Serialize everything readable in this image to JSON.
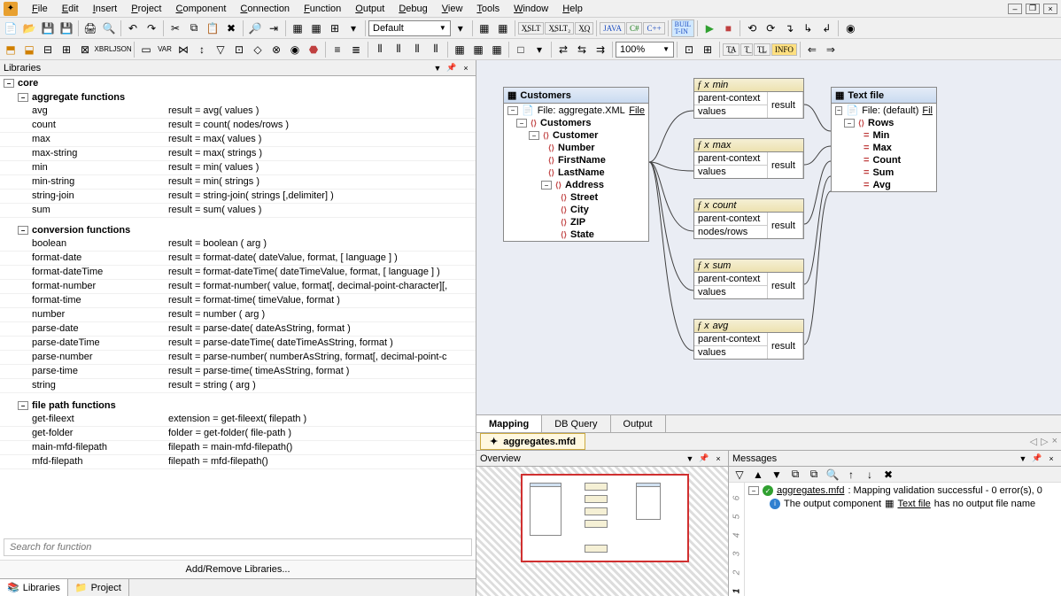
{
  "menubar": [
    "File",
    "Edit",
    "Insert",
    "Project",
    "Component",
    "Connection",
    "Function",
    "Output",
    "Debug",
    "View",
    "Tools",
    "Window",
    "Help"
  ],
  "toolbar2": {
    "combo": "Default",
    "zoom": "100%"
  },
  "libraries": {
    "title": "Libraries",
    "root": "core",
    "groups": [
      {
        "name": "aggregate functions",
        "fns": [
          {
            "n": "avg",
            "s": "result = avg( values )"
          },
          {
            "n": "count",
            "s": "result = count( nodes/rows )"
          },
          {
            "n": "max",
            "s": "result = max( values )"
          },
          {
            "n": "max-string",
            "s": "result = max( strings )"
          },
          {
            "n": "min",
            "s": "result = min( values )"
          },
          {
            "n": "min-string",
            "s": "result = min( strings )"
          },
          {
            "n": "string-join",
            "s": "result = string-join( strings [,delimiter] )"
          },
          {
            "n": "sum",
            "s": "result = sum( values )"
          }
        ]
      },
      {
        "name": "conversion functions",
        "fns": [
          {
            "n": "boolean",
            "s": "result = boolean ( arg )"
          },
          {
            "n": "format-date",
            "s": "result = format-date( dateValue, format, [ language ] )"
          },
          {
            "n": "format-dateTime",
            "s": "result = format-dateTime( dateTimeValue, format, [ language ] )"
          },
          {
            "n": "format-number",
            "s": "result = format-number( value, format[, decimal-point-character][,"
          },
          {
            "n": "format-time",
            "s": "result = format-time( timeValue, format )"
          },
          {
            "n": "number",
            "s": "result = number ( arg )"
          },
          {
            "n": "parse-date",
            "s": "result = parse-date( dateAsString, format )"
          },
          {
            "n": "parse-dateTime",
            "s": "result = parse-dateTime( dateTimeAsString, format )"
          },
          {
            "n": "parse-number",
            "s": "result = parse-number( numberAsString, format[, decimal-point-c"
          },
          {
            "n": "parse-time",
            "s": "result = parse-time( timeAsString, format )"
          },
          {
            "n": "string",
            "s": "result = string ( arg )"
          }
        ]
      },
      {
        "name": "file path functions",
        "fns": [
          {
            "n": "get-fileext",
            "s": "extension = get-fileext( filepath )"
          },
          {
            "n": "get-folder",
            "s": "folder = get-folder( file-path )"
          },
          {
            "n": "main-mfd-filepath",
            "s": "filepath = main-mfd-filepath()"
          },
          {
            "n": "mfd-filepath",
            "s": "filepath = mfd-filepath()"
          }
        ]
      }
    ],
    "search_placeholder": "Search for function",
    "add_btn": "Add/Remove Libraries...",
    "tabs": [
      "Libraries",
      "Project"
    ]
  },
  "canvas": {
    "customers": {
      "title": "Customers",
      "file": "File: aggregate.XML",
      "filelink": "File",
      "tree": [
        "Customers",
        "Customer",
        "Number",
        "FirstName",
        "LastName",
        "Address",
        "Street",
        "City",
        "ZIP",
        "State"
      ]
    },
    "funcs": [
      {
        "name": "min",
        "rows": [
          "parent-context",
          "values"
        ],
        "out": "result"
      },
      {
        "name": "max",
        "rows": [
          "parent-context",
          "values"
        ],
        "out": "result"
      },
      {
        "name": "count",
        "rows": [
          "parent-context",
          "nodes/rows"
        ],
        "out": "result"
      },
      {
        "name": "sum",
        "rows": [
          "parent-context",
          "values"
        ],
        "out": "result"
      },
      {
        "name": "avg",
        "rows": [
          "parent-context",
          "values"
        ],
        "out": "result"
      }
    ],
    "textfile": {
      "title": "Text file",
      "file": "File: (default)",
      "filelink": "Fil",
      "rows": [
        "Rows",
        "Min",
        "Max",
        "Count",
        "Sum",
        "Avg"
      ]
    }
  },
  "bottom_tabs": [
    "Mapping",
    "DB Query",
    "Output"
  ],
  "file_tab": "aggregates.mfd",
  "overview_title": "Overview",
  "messages": {
    "title": "Messages",
    "rows": [
      {
        "t": "ok",
        "file": "aggregates.mfd",
        "txt": ": Mapping validation successful - 0 error(s), 0"
      },
      {
        "t": "info",
        "pre": "The output component ",
        "link": "Text file",
        "post": " has no output file name"
      }
    ]
  }
}
